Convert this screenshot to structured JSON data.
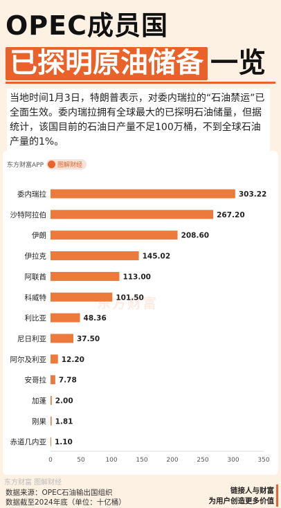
{
  "header": {
    "title_line1": "OPEC成员国",
    "title_line2_highlight": "已探明原油储备",
    "title_line2_rest": "一览"
  },
  "intro": "当地时间1月3日，特朗普表示，对委内瑞拉的“石油禁运”已全面生效。委内瑞拉拥有全球最大的已探明石油储量，但据统计，该国目前的石油日产量不足100万桶，不到全球石油产量的1%。",
  "brand": {
    "app_name": "东方财富APP",
    "badge_label": "图解财经",
    "watermark": "东方财富",
    "footer_brand": "东方财富 图解财经"
  },
  "footer": {
    "source": "数据来源：OPEC石油输出国组织",
    "note": "数据截至2024年底（单位：十亿桶）",
    "slogan_line1": "链接人与财富",
    "slogan_line2": "为用户创造更多价值"
  },
  "colors": {
    "accent": "#e8622a",
    "bar": "#ec7a3c",
    "background": "#fdf1e3"
  },
  "chart_data": {
    "type": "bar",
    "orientation": "horizontal",
    "categories": [
      "委内瑞拉",
      "沙特阿拉伯",
      "伊朗",
      "伊拉克",
      "阿联酋",
      "科威特",
      "利比亚",
      "尼日利亚",
      "阿尔及利亚",
      "安哥拉",
      "加蓬",
      "刚果",
      "赤道几内亚"
    ],
    "values": [
      303.22,
      267.2,
      208.6,
      145.02,
      113.0,
      101.5,
      48.36,
      37.5,
      12.2,
      7.78,
      2.0,
      1.81,
      1.1
    ],
    "value_labels": [
      "303.22",
      "267.20",
      "208.60",
      "145.02",
      "113.00",
      "101.50",
      "48.36",
      "37.50",
      "12.20",
      "7.78",
      "2.00",
      "1.81",
      "1.10"
    ],
    "xlim": [
      0,
      350
    ],
    "xticks": [
      "0",
      "50",
      "100",
      "150",
      "200",
      "250",
      "300",
      "350"
    ],
    "grid": false
  }
}
